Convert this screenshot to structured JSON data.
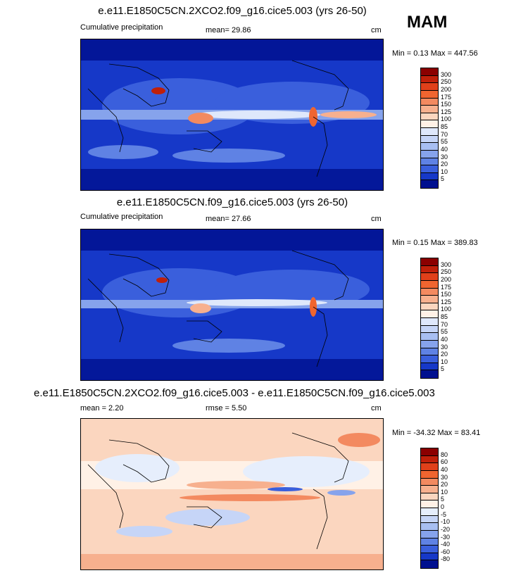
{
  "season": "MAM",
  "panels": [
    {
      "title": "e.e11.E1850C5CN.2XCO2.f09_g16.cice5.003 (yrs 26-50)",
      "left_label": "Cumulative precipitation",
      "center_label": "mean=  29.86",
      "units": "cm",
      "minmax": "Min =   0.13 Max = 447.56",
      "colorbar": {
        "levels": [
          "300",
          "250",
          "200",
          "175",
          "150",
          "125",
          "100",
          "85",
          "70",
          "55",
          "40",
          "30",
          "20",
          "10",
          "5"
        ],
        "colors": [
          "#8b0000",
          "#c0200a",
          "#e0401a",
          "#f06530",
          "#f38a60",
          "#f7b08e",
          "#fbd6bf",
          "#fff1e6",
          "#dfe8fb",
          "#c6d5f7",
          "#a8bff2",
          "#86a3ec",
          "#5f82e4",
          "#3a5fdc",
          "#1638c8",
          "#00108f"
        ]
      }
    },
    {
      "title": "e.e11.E1850C5CN.f09_g16.cice5.003 (yrs 26-50)",
      "left_label": "Cumulative precipitation",
      "center_label": "mean=  27.66",
      "units": "cm",
      "minmax": "Min =   0.15 Max = 389.83",
      "colorbar": {
        "levels": [
          "300",
          "250",
          "200",
          "175",
          "150",
          "125",
          "100",
          "85",
          "70",
          "55",
          "40",
          "30",
          "20",
          "10",
          "5"
        ],
        "colors": [
          "#8b0000",
          "#c0200a",
          "#e0401a",
          "#f06530",
          "#f38a60",
          "#f7b08e",
          "#fbd6bf",
          "#fff1e6",
          "#dfe8fb",
          "#c6d5f7",
          "#a8bff2",
          "#86a3ec",
          "#5f82e4",
          "#3a5fdc",
          "#1638c8",
          "#00108f"
        ]
      }
    },
    {
      "title": "e.e11.E1850C5CN.2XCO2.f09_g16.cice5.003 - e.e11.E1850C5CN.f09_g16.cice5.003",
      "left_label": "mean =   2.20",
      "center_label": "rmse =   5.50",
      "units": "cm",
      "minmax": "Min = -34.32 Max =  83.41",
      "colorbar": {
        "levels": [
          "80",
          "60",
          "40",
          "30",
          "20",
          "10",
          "5",
          "0",
          "-5",
          "-10",
          "-20",
          "-30",
          "-40",
          "-60",
          "-80"
        ],
        "colors": [
          "#8b0000",
          "#c0200a",
          "#e0401a",
          "#f06530",
          "#f38a60",
          "#f7b08e",
          "#fbd6bf",
          "#fff1e6",
          "#e6eefc",
          "#c6d5f7",
          "#a8bff2",
          "#86a3ec",
          "#5f82e4",
          "#3a5fdc",
          "#1638c8",
          "#00108f"
        ]
      }
    }
  ]
}
